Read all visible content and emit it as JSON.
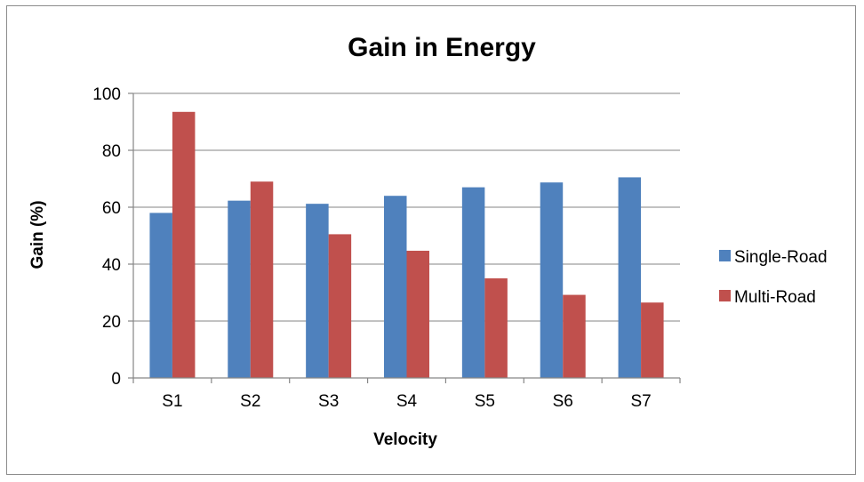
{
  "chart_data": {
    "type": "bar",
    "title": "Gain in Energy",
    "xlabel": "Velocity",
    "ylabel": "Gain (%)",
    "categories": [
      "S1",
      "S2",
      "S3",
      "S4",
      "S5",
      "S6",
      "S7"
    ],
    "ylim": [
      0,
      100
    ],
    "yticks": [
      0,
      20,
      40,
      60,
      80,
      100
    ],
    "grid": true,
    "legend_position": "right",
    "series": [
      {
        "name": "Single-Road",
        "color": "#4f81bd",
        "values": [
          58,
          62.3,
          61.2,
          64,
          67,
          68.7,
          70.5
        ]
      },
      {
        "name": "Multi-Road",
        "color": "#c0504d",
        "values": [
          93.5,
          69,
          50.5,
          44.7,
          35,
          29.2,
          26.5
        ]
      }
    ]
  }
}
